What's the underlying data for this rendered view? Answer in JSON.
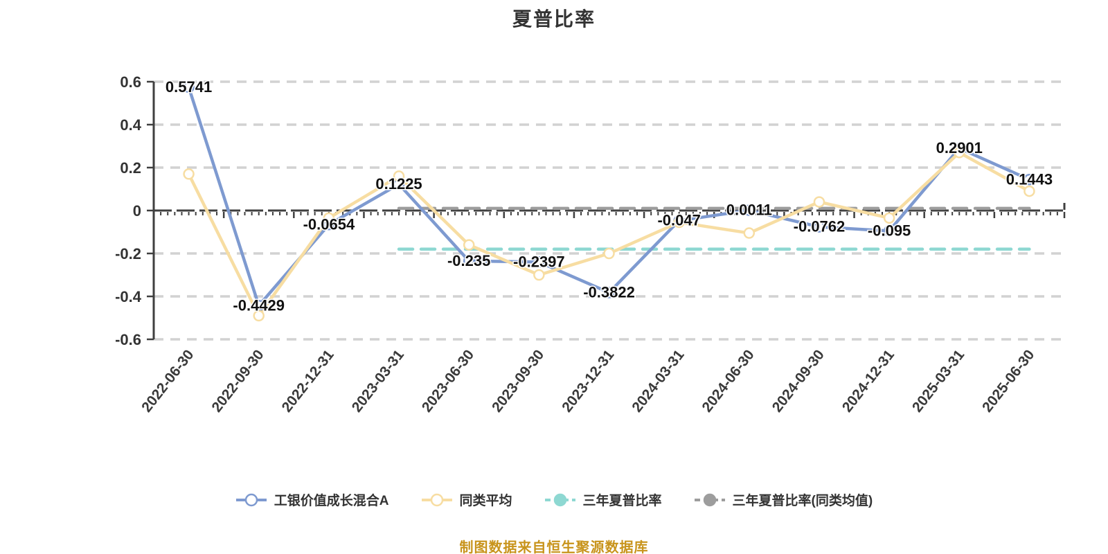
{
  "title": "夏普比率",
  "source_note": "制图数据来自恒生聚源数据库",
  "colors": {
    "fund_line": "#7e9ad0",
    "peer_line": "#f7dda2",
    "three_year_line": "#8ed8d2",
    "three_year_peer_line": "#9d9d9d",
    "grid_line": "#d2d2d2",
    "axis_line": "#3f3f3f",
    "axis_label": "#333333",
    "value_label": "#111111",
    "note_text": "#c8941c"
  },
  "chart_data": {
    "type": "line",
    "title": "夏普比率",
    "categories": [
      "2022-06-30",
      "2022-09-30",
      "2022-12-31",
      "2023-03-31",
      "2023-06-30",
      "2023-09-30",
      "2023-12-31",
      "2024-03-31",
      "2024-06-30",
      "2024-09-30",
      "2024-12-31",
      "2025-03-31",
      "2025-06-30"
    ],
    "series": [
      {
        "name": "工银价值成长混合A",
        "color": "#7e9ad0",
        "dashed": false,
        "show_markers": true,
        "show_labels": true,
        "values": [
          0.5741,
          -0.4429,
          -0.0654,
          0.1225,
          -0.235,
          -0.2397,
          -0.3822,
          -0.047,
          0.0011,
          -0.0762,
          -0.095,
          0.2901,
          0.1443
        ],
        "labels": [
          "0.5741",
          "-0.4429",
          "-0.0654",
          "0.1225",
          "-0.235",
          "-0.2397",
          "-0.3822",
          "-0.047",
          "0.0011",
          "-0.0762",
          "-0.095",
          "0.2901",
          "0.1443"
        ]
      },
      {
        "name": "同类平均",
        "color": "#f7dda2",
        "dashed": false,
        "show_markers": true,
        "show_labels": false,
        "values": [
          0.17,
          -0.49,
          -0.035,
          0.16,
          -0.16,
          -0.3,
          -0.2,
          -0.055,
          -0.105,
          0.04,
          -0.035,
          0.27,
          0.09
        ]
      },
      {
        "name": "三年夏普比率",
        "color": "#8ed8d2",
        "dashed": true,
        "show_markers": false,
        "show_labels": false,
        "values": [
          null,
          null,
          null,
          -0.18,
          -0.18,
          -0.18,
          -0.18,
          -0.18,
          -0.18,
          -0.18,
          -0.18,
          -0.18,
          -0.18
        ]
      },
      {
        "name": "三年夏普比率(同类均值)",
        "color": "#9d9d9d",
        "dashed": true,
        "show_markers": false,
        "show_labels": false,
        "values": [
          null,
          null,
          null,
          0.01,
          0.01,
          0.01,
          0.01,
          0.01,
          0.01,
          0.01,
          0.01,
          0.01,
          0.01
        ]
      }
    ],
    "ylim": [
      -0.6,
      0.6
    ],
    "yticks": [
      "0.6",
      "0.4",
      "0.2",
      "0",
      "-0.2",
      "-0.4",
      "-0.6"
    ],
    "x_label_rotation_deg": -52,
    "grid": "horizontal-dashed",
    "legend_position": "bottom"
  }
}
